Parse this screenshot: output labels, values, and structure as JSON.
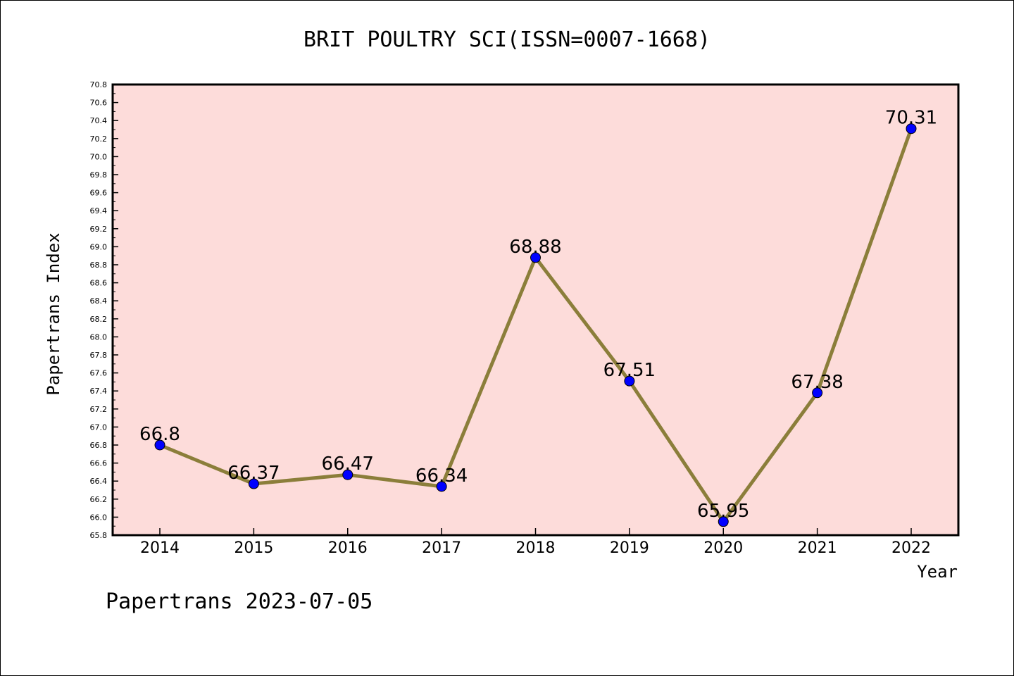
{
  "chart_data": {
    "type": "line",
    "title": "BRIT POULTRY SCI(ISSN=0007-1668)",
    "xlabel": "Year",
    "ylabel": "Papertrans Index",
    "categories": [
      "2014",
      "2015",
      "2016",
      "2017",
      "2018",
      "2019",
      "2020",
      "2021",
      "2022"
    ],
    "series": [
      {
        "values": [
          66.8,
          66.37,
          66.47,
          66.34,
          68.88,
          67.51,
          65.95,
          67.38,
          70.31
        ],
        "data_labels": [
          "66.8",
          "66.37",
          "66.47",
          "66.34",
          "68.88",
          "67.51",
          "65.95",
          "67.38",
          "70.31"
        ]
      }
    ],
    "ylim": [
      65.8,
      70.8
    ],
    "yticks": [
      "65.8",
      "66.0",
      "66.2",
      "66.4",
      "66.6",
      "66.8",
      "67.0",
      "67.2",
      "67.4",
      "67.6",
      "67.8",
      "68.0",
      "68.2",
      "68.4",
      "68.6",
      "68.8",
      "69.0",
      "69.2",
      "69.4",
      "69.6",
      "69.8",
      "70.0",
      "70.2",
      "70.4",
      "70.6",
      "70.8"
    ],
    "grid": false,
    "colors": {
      "plot_background": "#FDDCDA",
      "line": "#8B7E3A",
      "marker": "#0000FF"
    }
  },
  "footer": "Papertrans 2023-07-05"
}
